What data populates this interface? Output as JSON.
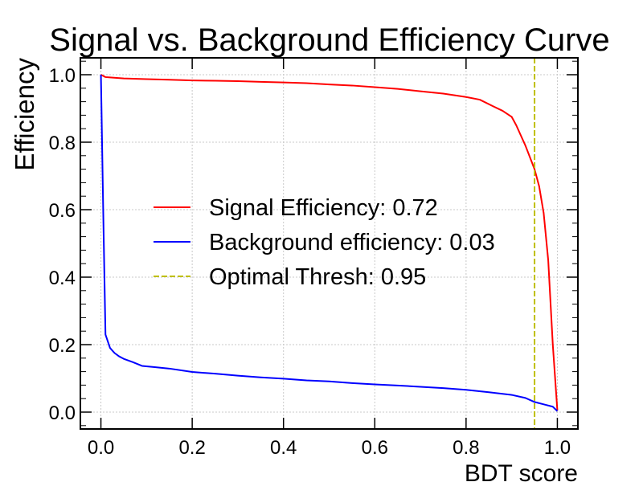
{
  "chart_data": {
    "type": "line",
    "title": "Signal vs. Background Efficiency Curve",
    "xlabel": "BDT score",
    "ylabel": "Efficiency",
    "xlim": [
      -0.045,
      1.045
    ],
    "ylim": [
      -0.05,
      1.05
    ],
    "grid": true,
    "legend_placement": "center-left",
    "x_ticks": [
      0.0,
      0.2,
      0.4,
      0.6,
      0.8,
      1.0
    ],
    "x_tick_labels": [
      "0.0",
      "0.2",
      "0.4",
      "0.6",
      "0.8",
      "1.0"
    ],
    "y_ticks": [
      0.0,
      0.2,
      0.4,
      0.6,
      0.8,
      1.0
    ],
    "y_tick_labels": [
      "0.0",
      "0.2",
      "0.4",
      "0.6",
      "0.8",
      "1.0"
    ],
    "series": [
      {
        "name": "Signal Efficiency",
        "legend_label": "Signal Efficiency: 0.72",
        "color": "#ff0000",
        "x": [
          0.0,
          0.01,
          0.02,
          0.05,
          0.1,
          0.15,
          0.2,
          0.25,
          0.3,
          0.35,
          0.4,
          0.45,
          0.5,
          0.55,
          0.6,
          0.65,
          0.7,
          0.75,
          0.8,
          0.83,
          0.86,
          0.88,
          0.9,
          0.91,
          0.92,
          0.93,
          0.94,
          0.95,
          0.96,
          0.97,
          0.98,
          0.99,
          1.0
        ],
        "y": [
          1.0,
          0.993,
          0.992,
          0.989,
          0.987,
          0.985,
          0.983,
          0.982,
          0.981,
          0.979,
          0.977,
          0.975,
          0.971,
          0.968,
          0.963,
          0.958,
          0.951,
          0.944,
          0.934,
          0.926,
          0.906,
          0.893,
          0.875,
          0.85,
          0.82,
          0.79,
          0.755,
          0.72,
          0.67,
          0.59,
          0.45,
          0.2,
          0.005
        ]
      },
      {
        "name": "Background efficiency",
        "legend_label": "Background efficiency: 0.03",
        "color": "#0000ff",
        "x": [
          0.0,
          0.005,
          0.01,
          0.02,
          0.03,
          0.04,
          0.05,
          0.07,
          0.09,
          0.12,
          0.15,
          0.2,
          0.25,
          0.3,
          0.35,
          0.4,
          0.45,
          0.5,
          0.55,
          0.6,
          0.65,
          0.7,
          0.75,
          0.8,
          0.85,
          0.9,
          0.93,
          0.95,
          0.97,
          0.99,
          1.0
        ],
        "y": [
          1.0,
          0.6,
          0.23,
          0.19,
          0.175,
          0.165,
          0.158,
          0.148,
          0.137,
          0.133,
          0.129,
          0.119,
          0.114,
          0.108,
          0.103,
          0.099,
          0.094,
          0.091,
          0.086,
          0.082,
          0.079,
          0.075,
          0.071,
          0.066,
          0.059,
          0.051,
          0.042,
          0.03,
          0.023,
          0.016,
          0.003
        ]
      }
    ],
    "vlines": [
      {
        "name": "Optimal Thresh",
        "legend_label": "Optimal Thresh: 0.95",
        "x": 0.95,
        "color": "#bfbf00",
        "style": "dashed"
      }
    ]
  }
}
